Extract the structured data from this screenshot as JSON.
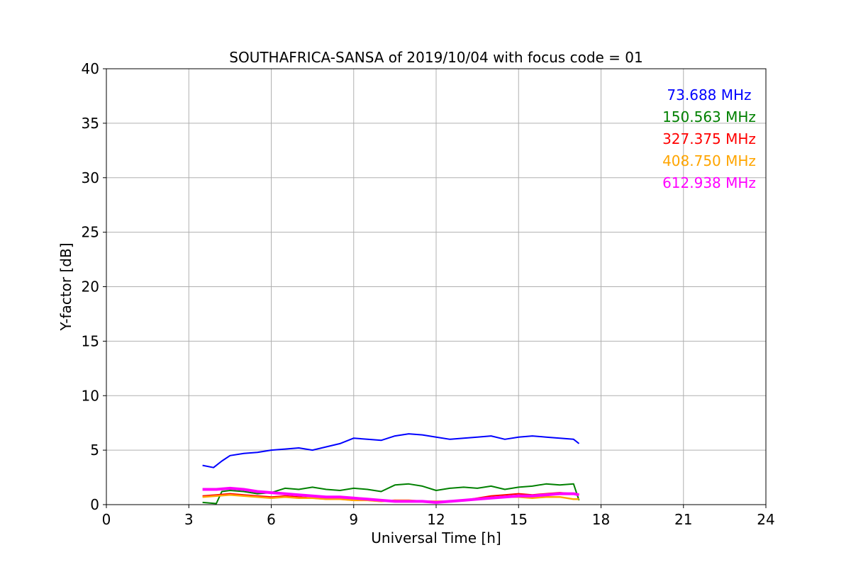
{
  "chart_data": {
    "type": "line",
    "title": "SOUTHAFRICA-SANSA of 2019/10/04 with focus code = 01",
    "xlabel": "Universal Time [h]",
    "ylabel": "Y-factor [dB]",
    "xlim": [
      0,
      24
    ],
    "ylim": [
      0,
      40
    ],
    "xticks": [
      0,
      3,
      6,
      9,
      12,
      15,
      18,
      21,
      24
    ],
    "yticks": [
      0,
      5,
      10,
      15,
      20,
      25,
      30,
      35,
      40
    ],
    "grid": true,
    "legend_position": "top-right",
    "series": [
      {
        "name": "73.688 MHz",
        "color": "#0000ff",
        "x": [
          3.5,
          3.9,
          4.2,
          4.5,
          5.0,
          5.5,
          6.0,
          6.5,
          7.0,
          7.5,
          8.0,
          8.5,
          9.0,
          9.5,
          10.0,
          10.5,
          11.0,
          11.5,
          12.0,
          12.5,
          13.0,
          13.5,
          14.0,
          14.5,
          15.0,
          15.5,
          16.0,
          16.5,
          17.0,
          17.2
        ],
        "y": [
          3.6,
          3.4,
          4.0,
          4.5,
          4.7,
          4.8,
          5.0,
          5.1,
          5.2,
          5.0,
          5.3,
          5.6,
          6.1,
          6.0,
          5.9,
          6.3,
          6.5,
          6.4,
          6.2,
          6.0,
          6.1,
          6.2,
          6.3,
          6.0,
          6.2,
          6.3,
          6.2,
          6.1,
          6.0,
          5.6
        ]
      },
      {
        "name": "150.563 MHz",
        "color": "#008000",
        "x": [
          3.5,
          4.0,
          4.2,
          4.5,
          5.0,
          5.5,
          6.0,
          6.5,
          7.0,
          7.5,
          8.0,
          8.5,
          9.0,
          9.5,
          10.0,
          10.5,
          11.0,
          11.5,
          12.0,
          12.5,
          13.0,
          13.5,
          14.0,
          14.5,
          15.0,
          15.5,
          16.0,
          16.5,
          17.0,
          17.2
        ],
        "y": [
          0.2,
          0.1,
          1.2,
          1.3,
          1.2,
          1.0,
          1.1,
          1.5,
          1.4,
          1.6,
          1.4,
          1.3,
          1.5,
          1.4,
          1.2,
          1.8,
          1.9,
          1.7,
          1.3,
          1.5,
          1.6,
          1.5,
          1.7,
          1.4,
          1.6,
          1.7,
          1.9,
          1.8,
          1.9,
          0.4
        ]
      },
      {
        "name": "327.375 MHz",
        "color": "#ff0000",
        "x": [
          3.5,
          4.0,
          4.5,
          5.0,
          5.5,
          6.0,
          6.5,
          7.0,
          7.5,
          8.0,
          8.5,
          9.0,
          9.5,
          10.0,
          10.5,
          11.0,
          11.5,
          12.0,
          12.5,
          13.0,
          13.5,
          14.0,
          14.5,
          15.0,
          15.5,
          16.0,
          16.5,
          17.0,
          17.2
        ],
        "y": [
          0.8,
          0.9,
          1.0,
          0.9,
          0.8,
          0.7,
          0.8,
          0.7,
          0.6,
          0.5,
          0.5,
          0.4,
          0.4,
          0.3,
          0.4,
          0.3,
          0.3,
          0.2,
          0.3,
          0.4,
          0.6,
          0.8,
          0.9,
          1.0,
          0.9,
          1.0,
          1.1,
          1.0,
          0.9
        ]
      },
      {
        "name": "408.750 MHz",
        "color": "#ffa500",
        "x": [
          3.5,
          4.0,
          4.5,
          5.0,
          5.5,
          6.0,
          6.5,
          7.0,
          7.5,
          8.0,
          8.5,
          9.0,
          9.5,
          10.0,
          10.5,
          11.0,
          11.5,
          12.0,
          12.5,
          13.0,
          13.5,
          14.0,
          14.5,
          15.0,
          15.5,
          16.0,
          16.5,
          17.0,
          17.2
        ],
        "y": [
          0.7,
          0.8,
          0.9,
          0.8,
          0.7,
          0.6,
          0.7,
          0.6,
          0.6,
          0.5,
          0.5,
          0.4,
          0.4,
          0.3,
          0.4,
          0.4,
          0.3,
          0.3,
          0.3,
          0.4,
          0.5,
          0.6,
          0.7,
          0.7,
          0.6,
          0.7,
          0.7,
          0.5,
          0.5
        ]
      },
      {
        "name": "612.938 MHz",
        "color": "#ff00ff",
        "x": [
          3.5,
          4.0,
          4.5,
          5.0,
          5.5,
          6.0,
          6.5,
          7.0,
          7.5,
          8.0,
          8.5,
          9.0,
          9.5,
          10.0,
          10.5,
          11.0,
          11.5,
          12.0,
          12.5,
          13.0,
          13.5,
          14.0,
          14.5,
          15.0,
          15.5,
          16.0,
          16.5,
          17.0,
          17.2
        ],
        "y": [
          1.4,
          1.4,
          1.5,
          1.4,
          1.2,
          1.1,
          1.0,
          0.9,
          0.8,
          0.7,
          0.7,
          0.6,
          0.5,
          0.4,
          0.3,
          0.3,
          0.3,
          0.2,
          0.3,
          0.4,
          0.5,
          0.6,
          0.7,
          0.8,
          0.8,
          0.9,
          1.0,
          1.0,
          0.9
        ]
      }
    ]
  }
}
